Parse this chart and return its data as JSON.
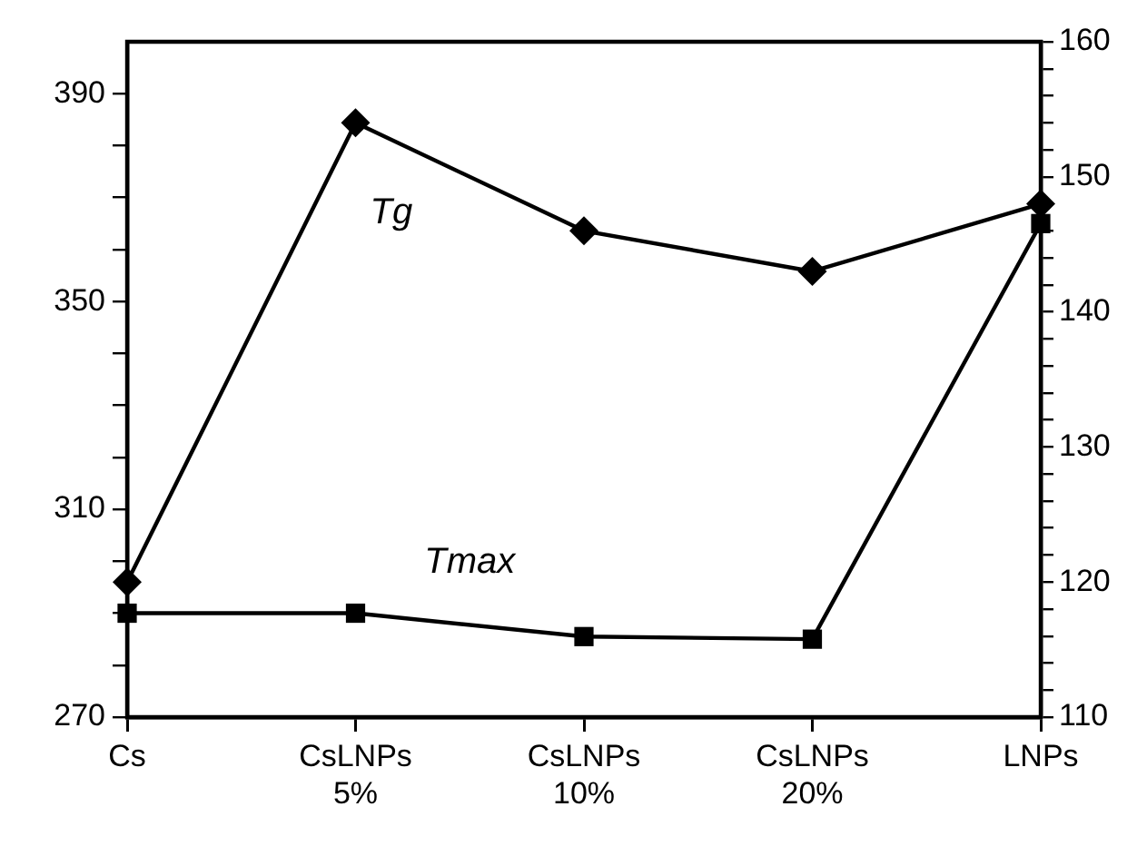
{
  "chart_data": {
    "type": "line",
    "categories": [
      "Cs",
      "CsLNPs 5%",
      "CsLNPs 10%",
      "CsLNPs 20%",
      "LNPs"
    ],
    "series": [
      {
        "name": "Tg",
        "color": "#000000",
        "marker": "diamond",
        "axis": "y2",
        "values": [
          120,
          154,
          146,
          143,
          148
        ]
      },
      {
        "name": "Tmax",
        "color": "#000000",
        "marker": "square",
        "values": [
          290,
          290,
          285.5,
          285,
          365
        ]
      }
    ],
    "ylim": [
      270,
      400
    ],
    "yticks": [
      270,
      {
        "value": 280,
        "label": null
      },
      {
        "value": 290,
        "label": null
      },
      {
        "value": 300,
        "label": null
      },
      310,
      {
        "value": 320,
        "label": null
      },
      {
        "value": 330,
        "label": null
      },
      {
        "value": 340,
        "label": null
      },
      350,
      {
        "value": 360,
        "label": null
      },
      {
        "value": 370,
        "label": null
      },
      {
        "value": 380,
        "label": null
      },
      390
    ],
    "y2lim": [
      110,
      160
    ],
    "y2ticks": [
      110,
      {
        "value": 112,
        "label": null
      },
      {
        "value": 114,
        "label": null
      },
      {
        "value": 116,
        "label": null
      },
      {
        "value": 118,
        "label": null
      },
      120,
      {
        "value": 122,
        "label": null
      },
      {
        "value": 124,
        "label": null
      },
      {
        "value": 126,
        "label": null
      },
      {
        "value": 128,
        "label": null
      },
      130,
      {
        "value": 132,
        "label": null
      },
      {
        "value": 134,
        "label": null
      },
      {
        "value": 136,
        "label": null
      },
      {
        "value": 138,
        "label": null
      },
      140,
      {
        "value": 142,
        "label": null
      },
      {
        "value": 144,
        "label": null
      },
      {
        "value": 146,
        "label": null
      },
      {
        "value": 148,
        "label": null
      },
      150,
      {
        "value": 152,
        "label": null
      },
      {
        "value": 154,
        "label": null
      },
      {
        "value": 156,
        "label": null
      },
      {
        "value": 158,
        "label": null
      },
      160
    ],
    "grid": false,
    "legend": false,
    "line_style": "solid"
  }
}
